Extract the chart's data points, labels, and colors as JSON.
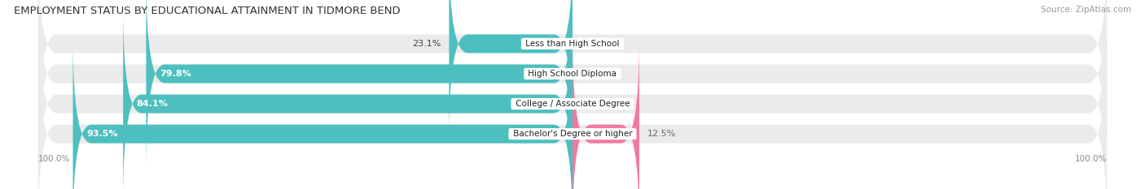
{
  "title": "EMPLOYMENT STATUS BY EDUCATIONAL ATTAINMENT IN TIDMORE BEND",
  "source": "Source: ZipAtlas.com",
  "categories": [
    "Less than High School",
    "High School Diploma",
    "College / Associate Degree",
    "Bachelor's Degree or higher"
  ],
  "labor_force": [
    23.1,
    79.8,
    84.1,
    93.5
  ],
  "unemployed": [
    0.0,
    0.0,
    0.0,
    12.5
  ],
  "color_labor": "#4DBFBF",
  "color_unemployed": "#F07AA0",
  "color_bg_bar": "#EBEBEB",
  "bar_height": 0.62,
  "title_fontsize": 9.5,
  "label_fontsize": 8,
  "tick_fontsize": 7.5,
  "source_fontsize": 7.5,
  "legend_fontsize": 8
}
